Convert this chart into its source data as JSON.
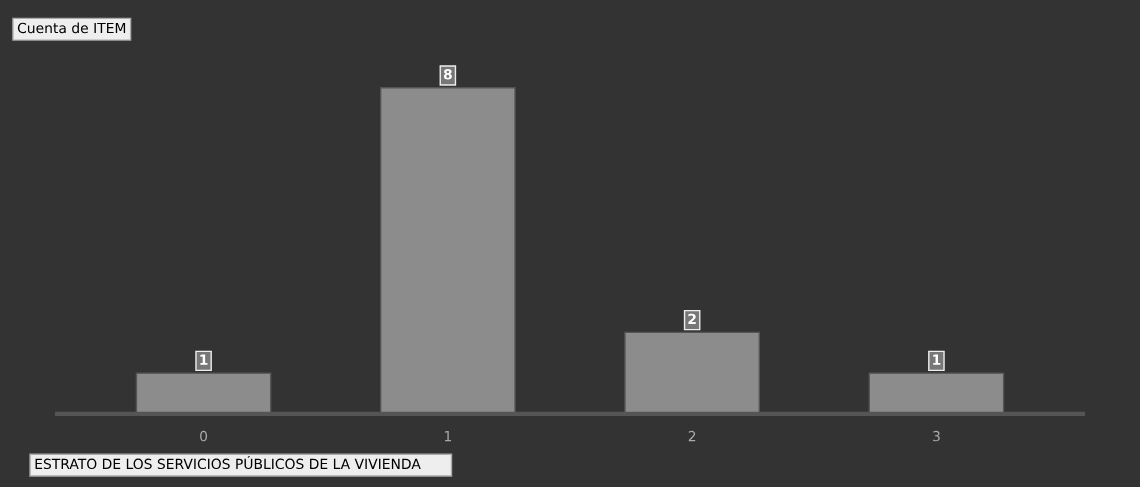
{
  "chart_data": {
    "type": "bar",
    "title": "Cuenta de ITEM",
    "xlabel": "ESTRATO DE LOS SERVICIOS PÚBLICOS DE LA VIVIENDA",
    "categories": [
      "0",
      "1",
      "2",
      "3"
    ],
    "values": [
      1,
      8,
      2,
      1
    ],
    "color": "#8c8c8c",
    "ylim": [
      0,
      8.6
    ],
    "data_labels": true
  }
}
